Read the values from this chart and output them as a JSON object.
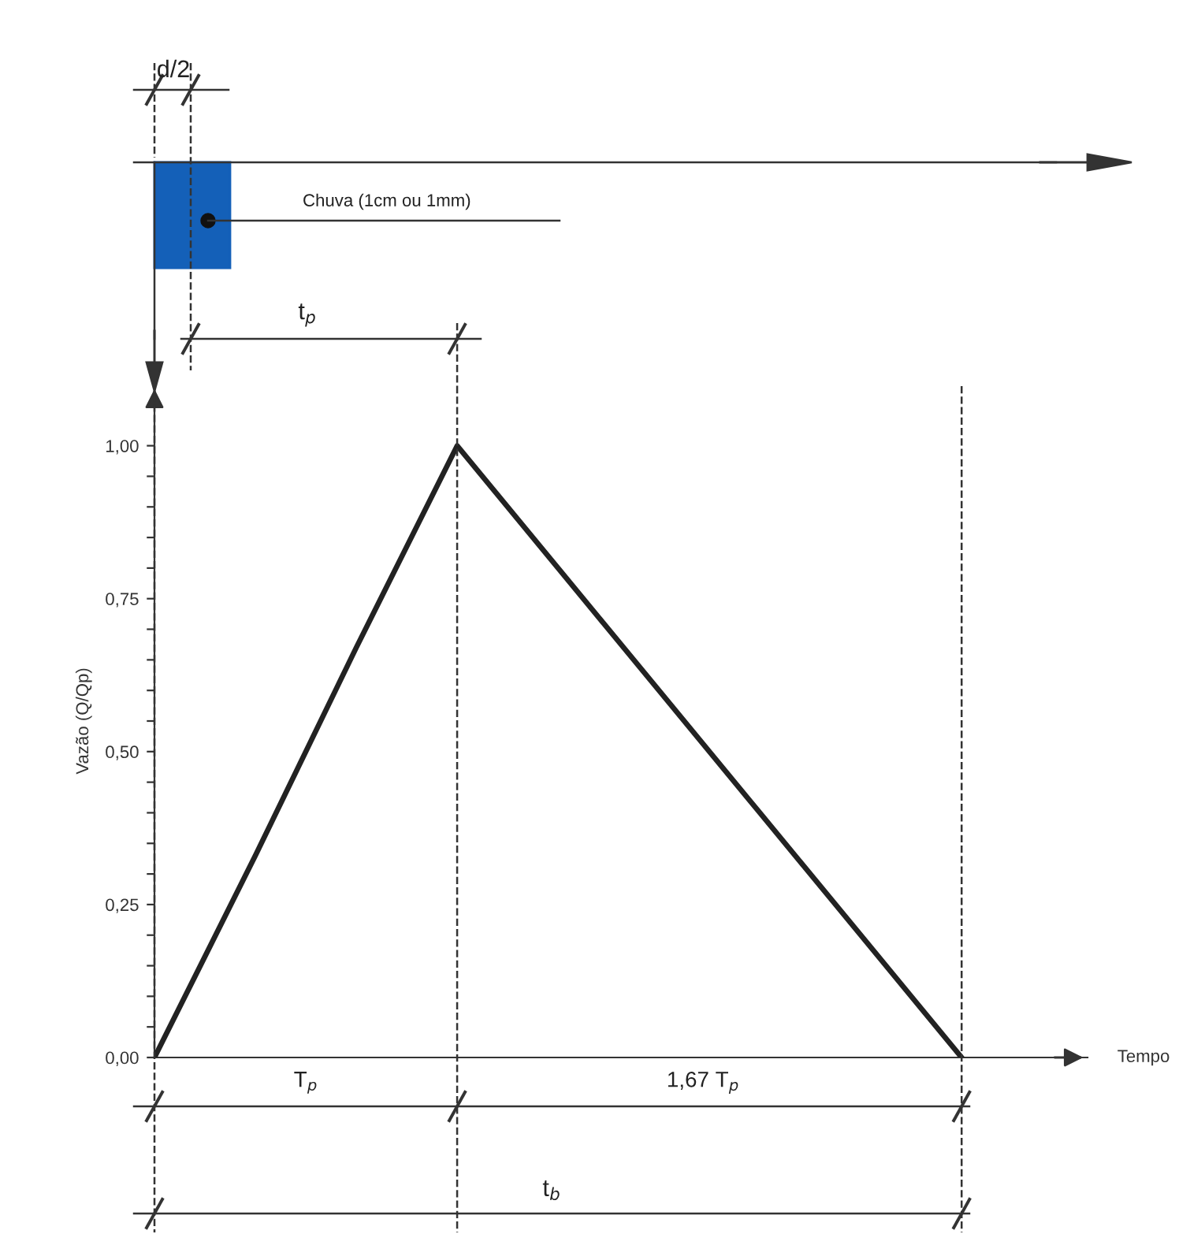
{
  "chart_data": {
    "type": "line",
    "ylabel": "Vazão (Q/Qp)",
    "xlabel": "Tempo",
    "categories": [
      null,
      null,
      null,
      null,
      null,
      null,
      null,
      null,
      null
    ],
    "ylim": [
      0,
      1.1
    ],
    "yticks": [
      {
        "value": 0,
        "label": "0,00"
      },
      {
        "value": 0.05,
        "label": null
      },
      {
        "value": 0.1,
        "label": null
      },
      {
        "value": 0.15,
        "label": null
      },
      {
        "value": 0.2,
        "label": null
      },
      {
        "value": 0.25,
        "label": "0,25"
      },
      {
        "value": 0.3,
        "label": null
      },
      {
        "value": 0.35,
        "label": null
      },
      {
        "value": 0.4,
        "label": null
      },
      {
        "value": 0.45,
        "label": null
      },
      {
        "value": 0.5,
        "label": "0,50"
      },
      {
        "value": 0.55,
        "label": null
      },
      {
        "value": 0.6,
        "label": null
      },
      {
        "value": 0.65,
        "label": null
      },
      {
        "value": 0.7,
        "label": null
      },
      {
        "value": 0.75,
        "label": "0,75"
      },
      {
        "value": 0.8,
        "label": null
      },
      {
        "value": 0.85,
        "label": null
      },
      {
        "value": 0.9,
        "label": null
      },
      {
        "value": 0.95,
        "label": null
      },
      {
        "value": 1,
        "label": "1,00"
      }
    ],
    "tick_labels": "y",
    "series": [
      {
        "color": "#222222",
        "values": [
          0,
          0.33,
          0.67,
          1,
          0.8,
          0.6,
          0.4,
          0.2,
          0
        ]
      }
    ],
    "marker": "none",
    "line_style": "solid",
    "grid": false,
    "legend": false,
    "annotations": [
      "d/2",
      "Chuva (1cm ou 1mm)",
      "t$_{p}$",
      "T$_{p}$",
      "1,67 T$_{p}$",
      "t$_{b}$"
    ]
  }
}
